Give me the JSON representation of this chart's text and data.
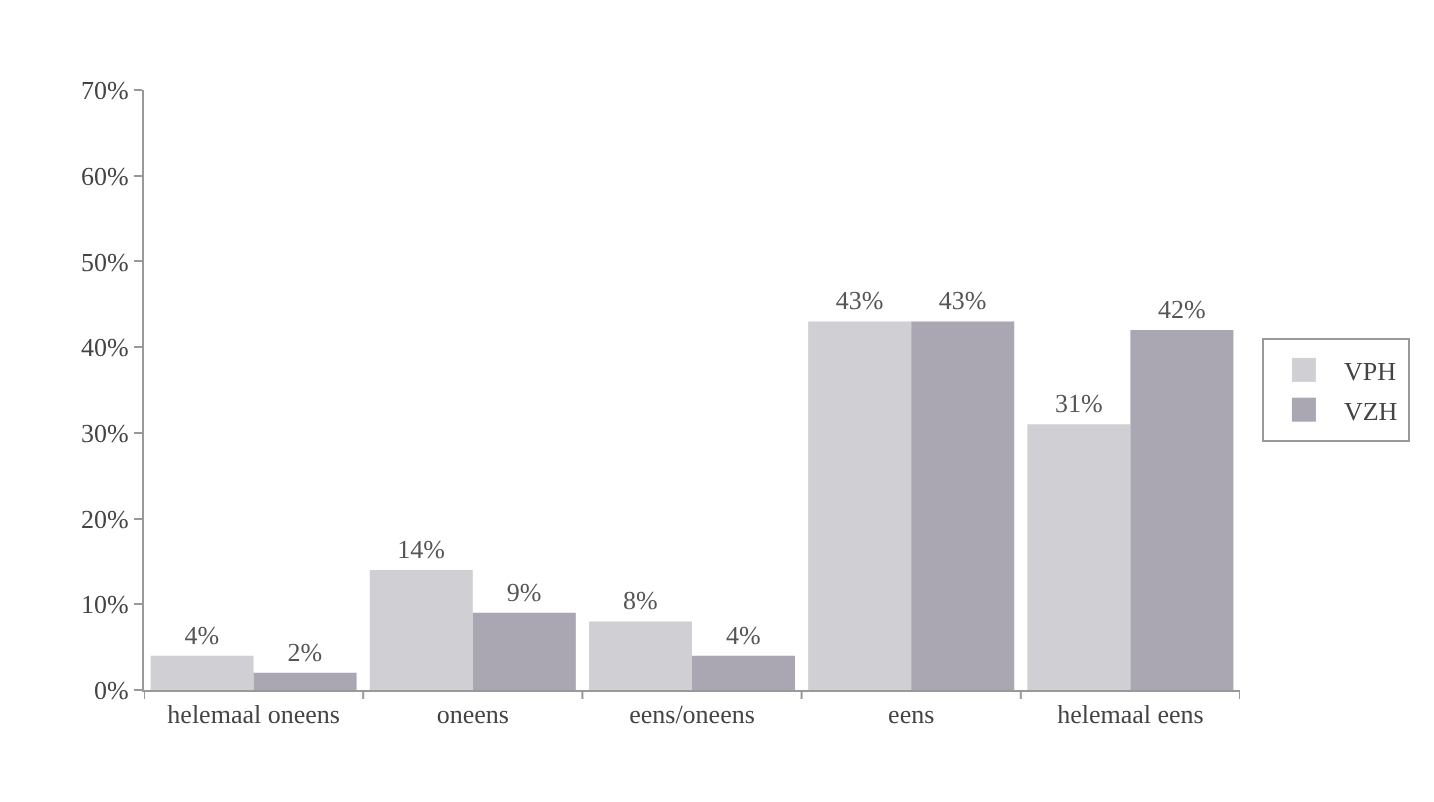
{
  "chart_data": {
    "type": "bar",
    "categories": [
      "helemaal oneens",
      "oneens",
      "eens/oneens",
      "eens",
      "helemaal eens"
    ],
    "series": [
      {
        "name": "VPH",
        "color": "#d0d0d4",
        "values": [
          4,
          14,
          8,
          43,
          31
        ],
        "value_labels": [
          "4%",
          "14%",
          "8%",
          "43%",
          "31%"
        ]
      },
      {
        "name": "VZH",
        "color": "#aaa7b3",
        "values": [
          2,
          9,
          4,
          43,
          42
        ],
        "value_labels": [
          "2%",
          "9%",
          "4%",
          "43%",
          "42%"
        ]
      }
    ],
    "ylim": [
      0,
      70
    ],
    "yticks": [
      {
        "value": 0,
        "label": "0%"
      },
      {
        "value": 10,
        "label": "10%"
      },
      {
        "value": 20,
        "label": "20%"
      },
      {
        "value": 30,
        "label": "30%"
      },
      {
        "value": 40,
        "label": "40%"
      },
      {
        "value": 50,
        "label": "50%"
      },
      {
        "value": 60,
        "label": "60%"
      },
      {
        "value": 70,
        "label": "70%"
      }
    ],
    "legend": "right"
  }
}
